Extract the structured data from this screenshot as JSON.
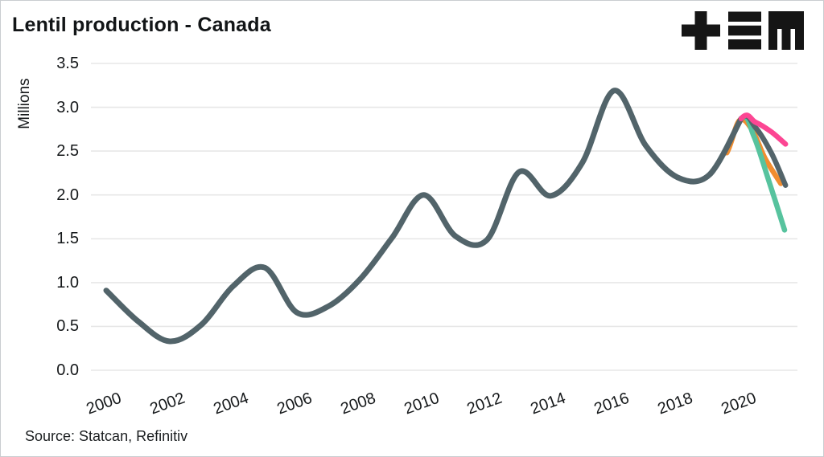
{
  "header": {
    "title": "Lentil production - Canada"
  },
  "logo": {
    "name": "tem-logo"
  },
  "source": {
    "label": "Source: Statcan, Refinitiv"
  },
  "colors": {
    "historical": "#52646a",
    "forecast_pink": "#fc4693",
    "forecast_grey": "#53646a",
    "forecast_green": "#57c39e",
    "forecast_orange": "#f18d2f",
    "gridline": "#e7e7e7",
    "text": "#15181a"
  },
  "chart_data": {
    "type": "line",
    "title": "Lentil production - Canada",
    "xlabel": "",
    "ylabel": "Millions",
    "ylim": [
      0.0,
      3.5
    ],
    "ytick_step": 0.5,
    "ytick_labels": [
      "0.0",
      "0.5",
      "1.0",
      "1.5",
      "2.0",
      "2.5",
      "3.0",
      "3.5"
    ],
    "xticks": [
      2000,
      2002,
      2004,
      2006,
      2008,
      2010,
      2012,
      2014,
      2016,
      2018,
      2020
    ],
    "grid": "horizontal",
    "legend": "none",
    "series": [
      {
        "name": "forecast-orange",
        "role": "forecast",
        "color": "#f18d2f",
        "x": [
          2019.55,
          2019.95,
          2020.35,
          2020.75,
          2021.25
        ],
        "values": [
          2.48,
          2.85,
          2.74,
          2.42,
          2.13
        ]
      },
      {
        "name": "forecast-green",
        "role": "forecast",
        "color": "#57c39e",
        "x": [
          2020,
          2020.4,
          2020.9,
          2021.37
        ],
        "values": [
          2.87,
          2.67,
          2.13,
          1.6
        ]
      },
      {
        "name": "historical-production",
        "role": "historical",
        "color": "#52646a",
        "x": [
          2000,
          2001,
          2002,
          2003,
          2004,
          2005,
          2006,
          2007,
          2008,
          2009,
          2010,
          2011,
          2012,
          2013,
          2014,
          2015,
          2016,
          2017,
          2018,
          2019,
          2020
        ],
        "values": [
          0.91,
          0.56,
          0.33,
          0.52,
          0.96,
          1.17,
          0.66,
          0.73,
          1.04,
          1.51,
          2.0,
          1.53,
          1.49,
          2.26,
          1.99,
          2.37,
          3.19,
          2.56,
          2.2,
          2.23,
          2.87
        ]
      },
      {
        "name": "forecast-grey",
        "role": "forecast",
        "color": "#53646a",
        "x": [
          2020,
          2020.45,
          2020.95,
          2021.4
        ],
        "values": [
          2.87,
          2.77,
          2.48,
          2.11
        ]
      },
      {
        "name": "forecast-pink",
        "role": "forecast",
        "color": "#fc4693",
        "x": [
          2020,
          2020.45,
          2020.95,
          2021.4
        ],
        "values": [
          2.87,
          2.83,
          2.72,
          2.58
        ]
      }
    ]
  }
}
